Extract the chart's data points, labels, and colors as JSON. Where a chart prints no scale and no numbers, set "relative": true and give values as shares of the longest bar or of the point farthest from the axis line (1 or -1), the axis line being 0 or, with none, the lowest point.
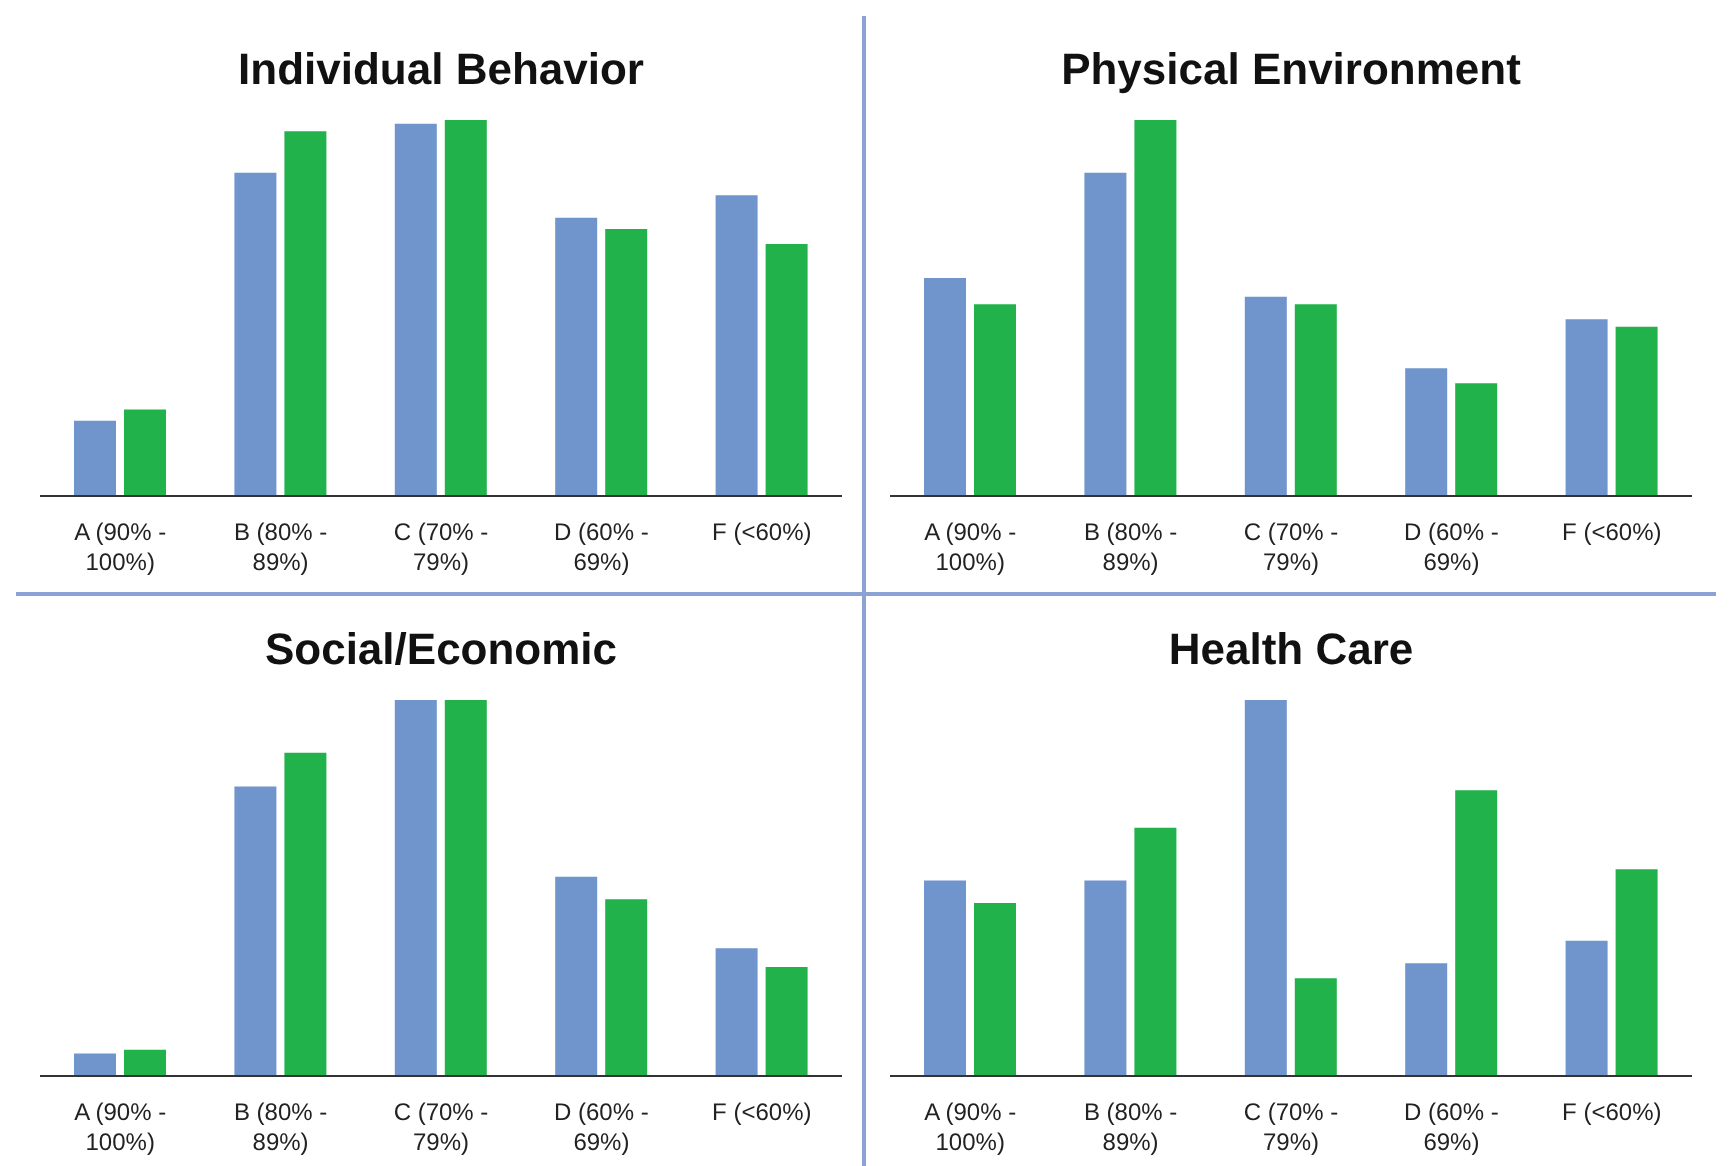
{
  "chart_data": [
    {
      "type": "bar",
      "title": "Individual Behavior",
      "relative": true,
      "categories": [
        "A (90% - 100%)",
        "B (80% - 89%)",
        "C (70% - 79%)",
        "D (60% - 69%)",
        "F (<60%)"
      ],
      "series": [
        {
          "color": "#7094cc",
          "values": [
            0.2,
            0.86,
            0.99,
            0.74,
            0.8
          ]
        },
        {
          "color": "#22b24c",
          "values": [
            0.23,
            0.97,
            1,
            0.71,
            0.67
          ]
        }
      ]
    },
    {
      "type": "bar",
      "title": "Physical Environment",
      "relative": true,
      "categories": [
        "A (90% - 100%)",
        "B (80% - 89%)",
        "C (70% - 79%)",
        "D (60% - 69%)",
        "F (<60%)"
      ],
      "series": [
        {
          "color": "#7094cc",
          "values": [
            0.58,
            0.86,
            0.53,
            0.34,
            0.47
          ]
        },
        {
          "color": "#22b24c",
          "values": [
            0.51,
            1,
            0.51,
            0.3,
            0.45
          ]
        }
      ]
    },
    {
      "type": "bar",
      "title": "Social/Economic",
      "relative": true,
      "categories": [
        "A (90% - 100%)",
        "B (80% - 89%)",
        "C (70% - 79%)",
        "D (60% - 69%)",
        "F (<60%)"
      ],
      "series": [
        {
          "color": "#7094cc",
          "values": [
            0.06,
            0.77,
            1,
            0.53,
            0.34
          ]
        },
        {
          "color": "#22b24c",
          "values": [
            0.07,
            0.86,
            1,
            0.47,
            0.29
          ]
        }
      ]
    },
    {
      "type": "bar",
      "title": "Health Care",
      "relative": true,
      "categories": [
        "A (90% - 100%)",
        "B (80% - 89%)",
        "C (70% - 79%)",
        "D (60% - 69%)",
        "F (<60%)"
      ],
      "series": [
        {
          "color": "#7094cc",
          "values": [
            0.52,
            0.52,
            1,
            0.3,
            0.36
          ]
        },
        {
          "color": "#22b24c",
          "values": [
            0.46,
            0.66,
            0.26,
            0.76,
            0.55
          ]
        }
      ]
    }
  ]
}
